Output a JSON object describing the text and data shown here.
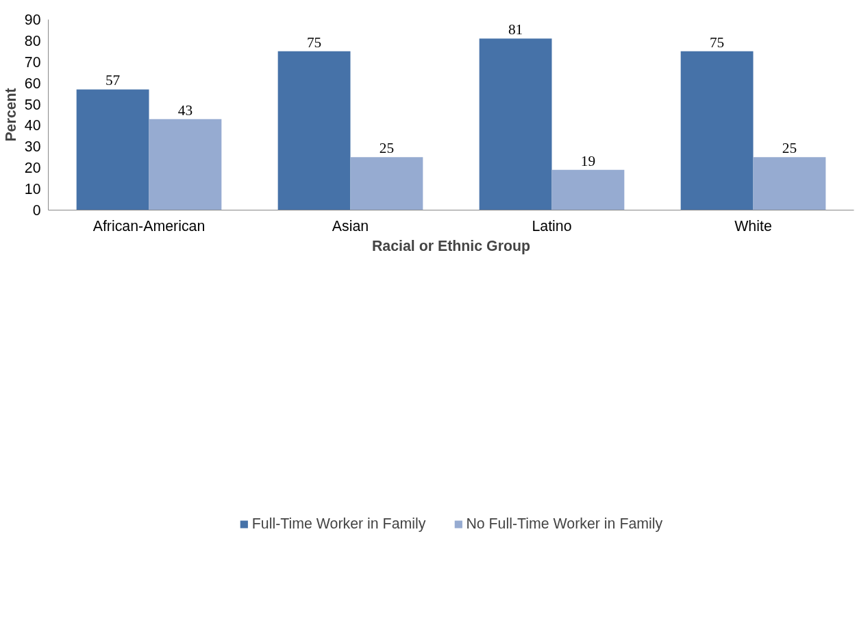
{
  "chart_data": {
    "type": "bar",
    "xlabel": "Racial or Ethnic Group",
    "ylabel": "Percent",
    "categories": [
      "African-American",
      "Asian",
      "Latino",
      "White"
    ],
    "series": [
      {
        "name": "Full-Time Worker in Family",
        "color": "#4672a8",
        "values": [
          57,
          75,
          81,
          75
        ]
      },
      {
        "name": "No Full-Time Worker in Family",
        "color": "#96abd1",
        "values": [
          43,
          25,
          19,
          25
        ]
      }
    ],
    "ylim": [
      0,
      90
    ],
    "yticks": [
      0,
      10,
      20,
      30,
      40,
      50,
      60,
      70,
      80,
      90
    ],
    "grid": false,
    "legend": "bottom",
    "data_labels": true
  }
}
